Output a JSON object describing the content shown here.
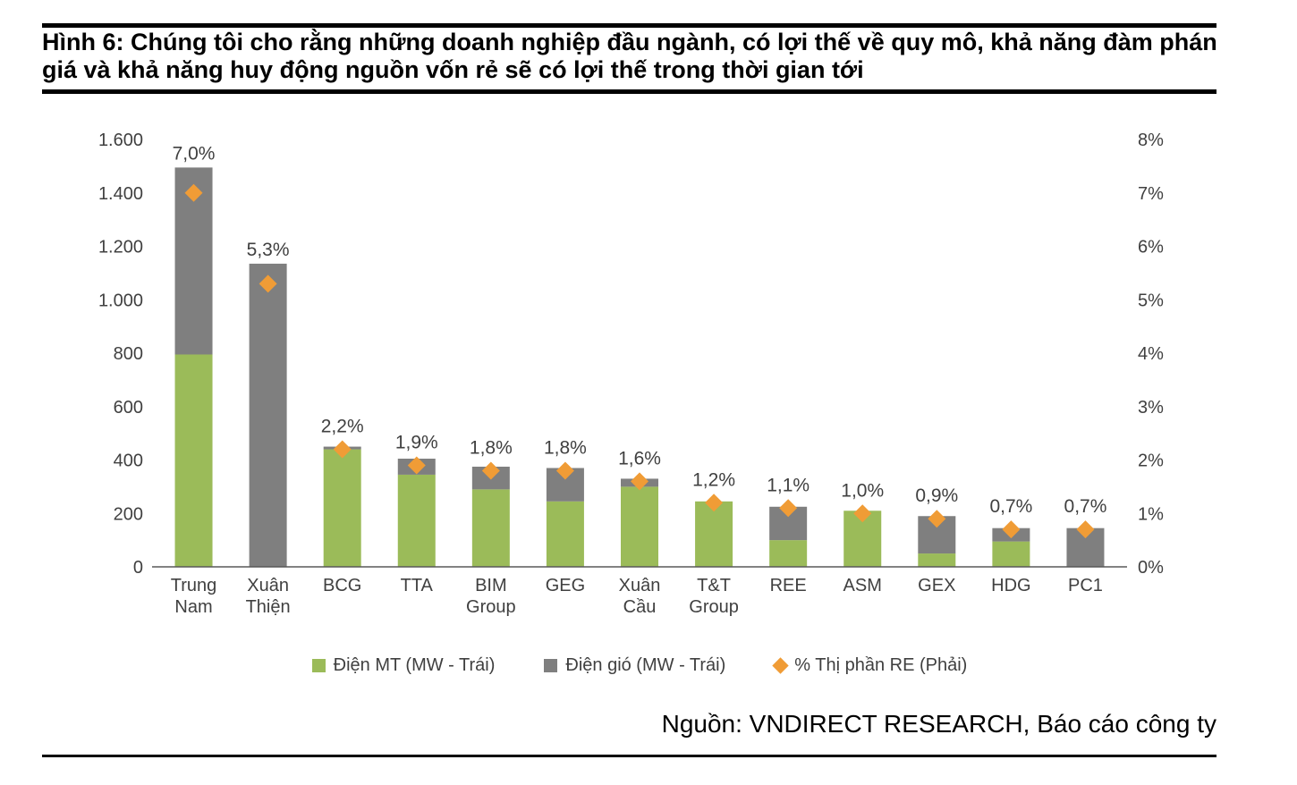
{
  "figure": {
    "title": "Hình 6: Chúng tôi cho rằng những doanh nghiệp đầu ngành, có lợi thế về quy mô, khả năng đàm phán giá và khả năng huy động nguồn vốn rẻ sẽ có lợi thế trong thời gian tới",
    "source": "Nguồn: VNDIRECT RESEARCH, Báo cáo công ty"
  },
  "chart_data": {
    "type": "bar",
    "subtype": "stacked-bars-with-diamond-markers",
    "grid": false,
    "legend_position": "bottom",
    "categories": [
      [
        "Trung",
        "Nam"
      ],
      [
        "Xuân",
        "Thiện"
      ],
      [
        "BCG"
      ],
      [
        "TTA"
      ],
      [
        "BIM",
        "Group"
      ],
      [
        "GEG"
      ],
      [
        "Xuân",
        "Cầu"
      ],
      [
        "T&T",
        "Group"
      ],
      [
        "REE"
      ],
      [
        "ASM"
      ],
      [
        "GEX"
      ],
      [
        "HDG"
      ],
      [
        "PC1"
      ]
    ],
    "series": [
      {
        "name": "Điện MT (MW - Trái)",
        "axis": "left",
        "kind": "bar",
        "color": "#9BBB59",
        "values": [
          795,
          0,
          440,
          345,
          290,
          245,
          300,
          245,
          100,
          210,
          50,
          95,
          0
        ]
      },
      {
        "name": "Điện gió (MW - Trái)",
        "axis": "left",
        "kind": "bar",
        "color": "#7F7F7F",
        "values": [
          700,
          1135,
          10,
          60,
          85,
          125,
          30,
          0,
          125,
          0,
          140,
          50,
          145
        ]
      },
      {
        "name": "% Thị phần RE (Phải)",
        "axis": "right",
        "kind": "scatter-diamond",
        "color": "#F09C36",
        "values": [
          7.0,
          5.3,
          2.2,
          1.9,
          1.8,
          1.8,
          1.6,
          1.2,
          1.1,
          1.0,
          0.9,
          0.7,
          0.7
        ],
        "labels": [
          "7,0%",
          "5,3%",
          "2,2%",
          "1,9%",
          "1,8%",
          "1,8%",
          "1,6%",
          "1,2%",
          "1,1%",
          "1,0%",
          "0,9%",
          "0,7%",
          "0,7%"
        ]
      }
    ],
    "left_axis": {
      "min": 0,
      "max": 1600,
      "tick_step": 200,
      "tick_labels": [
        "0",
        "200",
        "400",
        "600",
        "800",
        "1.000",
        "1.200",
        "1.400",
        "1.600"
      ]
    },
    "right_axis": {
      "min": 0,
      "max": 8,
      "tick_step": 1,
      "tick_labels": [
        "0%",
        "1%",
        "2%",
        "3%",
        "4%",
        "5%",
        "6%",
        "7%",
        "8%"
      ]
    },
    "legend": [
      {
        "label": "Điện MT (MW - Trái)",
        "swatch": "square",
        "color": "#9BBB59"
      },
      {
        "label": "Điện gió (MW - Trái)",
        "swatch": "square",
        "color": "#7F7F7F"
      },
      {
        "label": "% Thị phần RE (Phải)",
        "swatch": "diamond",
        "color": "#F09C36"
      }
    ]
  }
}
